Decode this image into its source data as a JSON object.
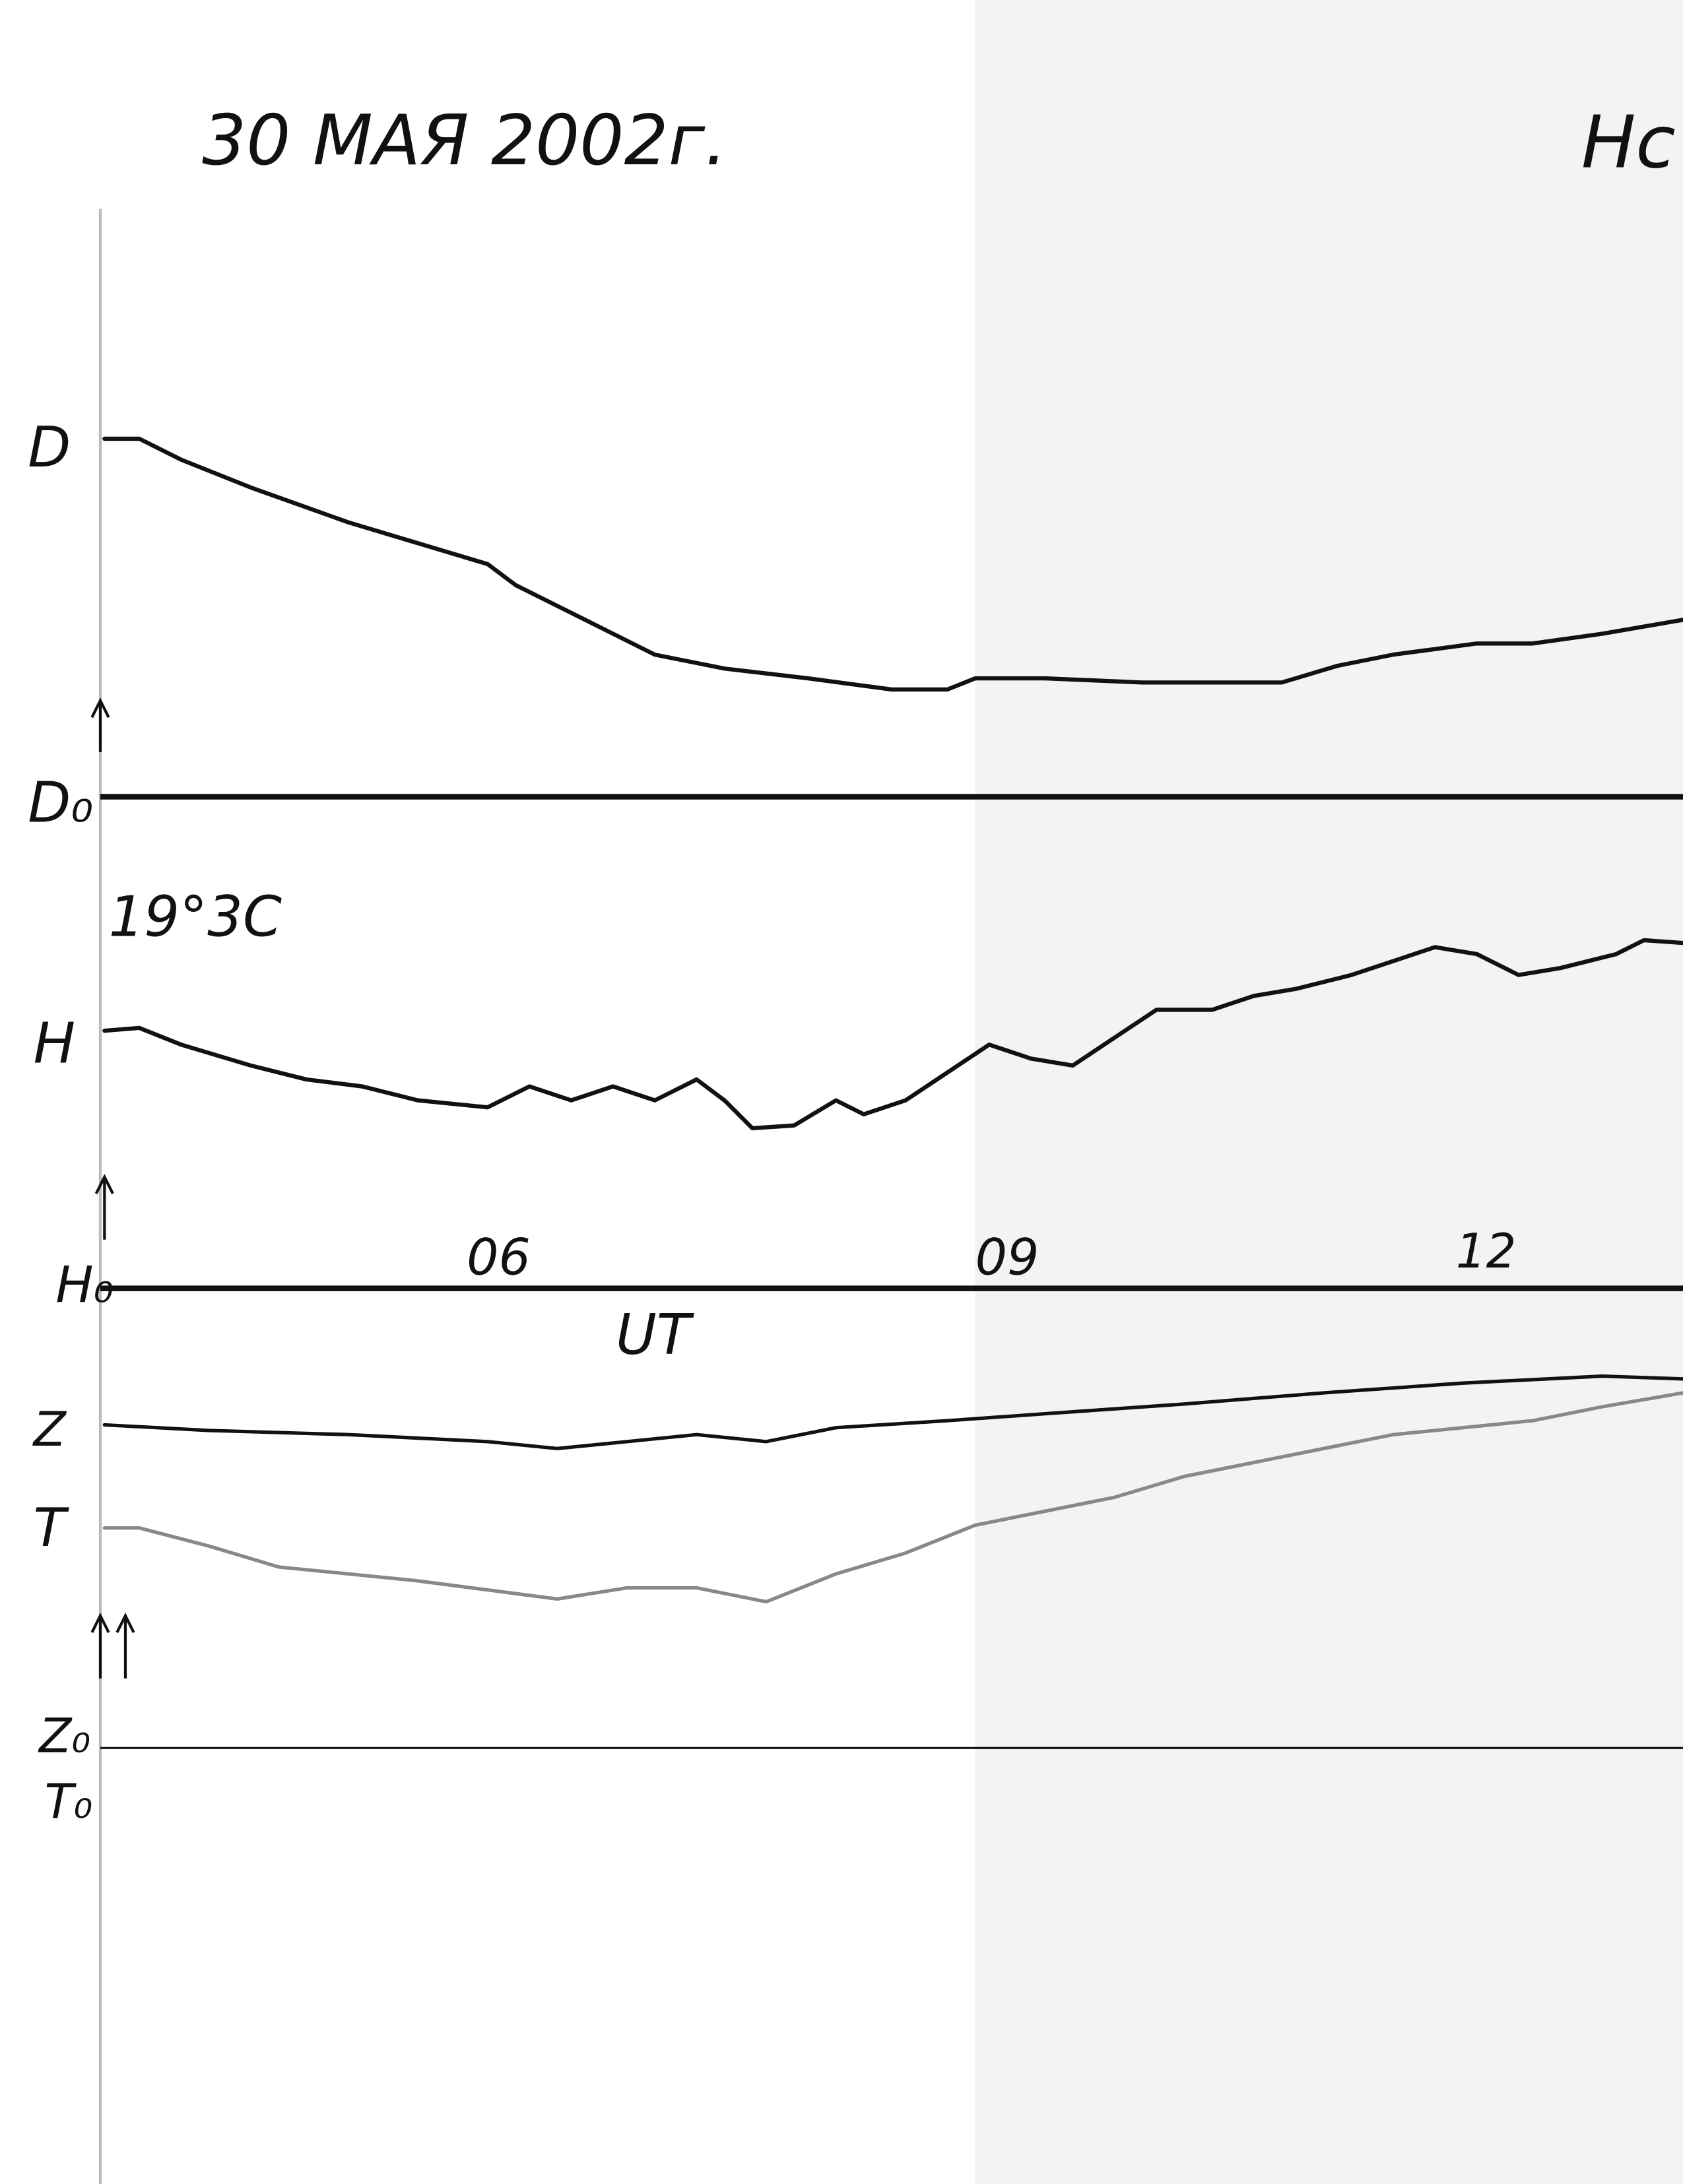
{
  "header": {
    "date": "30 МАЯ 2002г.",
    "station": "Нс"
  },
  "traces": {
    "d": {
      "label": "D",
      "baseline": "D₀"
    },
    "h": {
      "label": "H",
      "baseline": "H₀",
      "temperature": "19°3C"
    },
    "z": {
      "label": "Z",
      "baseline": "Z₀"
    },
    "t": {
      "label": "T",
      "baseline": "T₀"
    }
  },
  "time_axis": {
    "ticks": [
      "06",
      "09",
      "12"
    ],
    "label": "UT"
  }
}
